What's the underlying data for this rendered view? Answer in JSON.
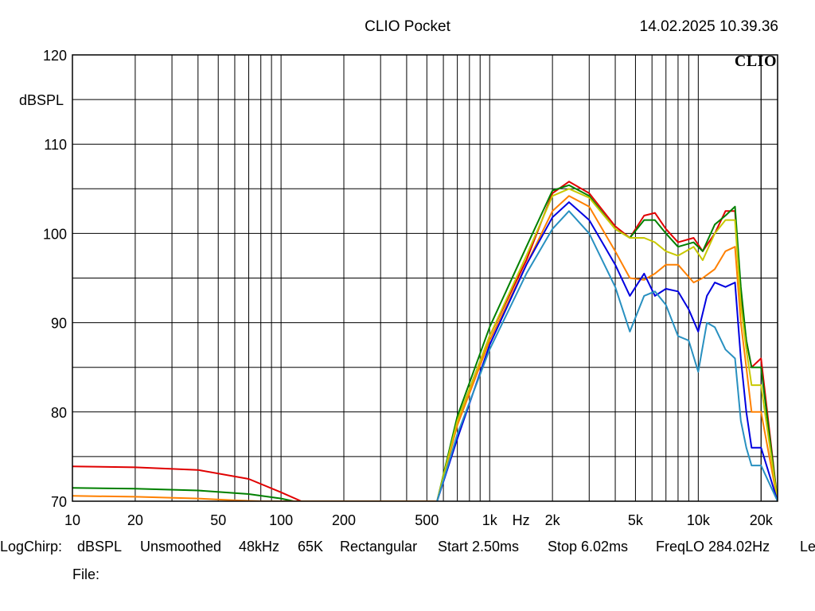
{
  "header": {
    "title": "CLIO Pocket",
    "datetime": "14.02.2025 10.39.36",
    "logo": "CLIO"
  },
  "footer": {
    "mode": "LogChirp:",
    "unit": "dBSPL",
    "smoothing": "Unsmoothed",
    "rate": "48kHz",
    "size": "65K",
    "window": "Rectangular",
    "start": "Start 2.50ms",
    "stop": "Stop 6.02ms",
    "freqlo": "FreqLO 284.02Hz",
    "truncated": "Le",
    "file": "File:"
  },
  "chart_data": {
    "type": "line",
    "title": "CLIO Pocket",
    "xlabel": "Hz",
    "ylabel": "dBSPL",
    "x_scale": "log",
    "xlim": [
      10,
      24000
    ],
    "ylim": [
      70,
      120
    ],
    "grid": true,
    "x_ticks": [
      {
        "value": 10,
        "label": "10"
      },
      {
        "value": 20,
        "label": "20"
      },
      {
        "value": 50,
        "label": "50"
      },
      {
        "value": 100,
        "label": "100"
      },
      {
        "value": 200,
        "label": "200"
      },
      {
        "value": 500,
        "label": "500"
      },
      {
        "value": 1000,
        "label": "1k"
      },
      {
        "value": 2000,
        "label": "2k"
      },
      {
        "value": 5000,
        "label": "5k"
      },
      {
        "value": 10000,
        "label": "10k"
      },
      {
        "value": 20000,
        "label": "20k"
      }
    ],
    "y_ticks": [
      70,
      80,
      90,
      100,
      110,
      120
    ],
    "series": [
      {
        "color": "#e00000",
        "x": [
          10,
          20,
          40,
          70,
          100,
          125,
          560,
          700,
          1000,
          1500,
          2000,
          2400,
          3000,
          4000,
          4700,
          5500,
          6200,
          7000,
          8000,
          9500,
          10500,
          12000,
          13500,
          15000,
          16000,
          17000,
          18000,
          20000,
          24000
        ],
        "y": [
          73.9,
          73.8,
          73.5,
          72.5,
          71.0,
          70.0,
          70.0,
          79.0,
          88.5,
          97.0,
          104.5,
          105.8,
          104.5,
          100.8,
          99.5,
          102.0,
          102.3,
          100.5,
          99.0,
          99.5,
          98.0,
          100.0,
          102.5,
          102.5,
          93.0,
          88.0,
          85.0,
          86.0,
          70.0
        ]
      },
      {
        "color": "#008000",
        "x": [
          10,
          20,
          40,
          70,
          100,
          115,
          560,
          700,
          1000,
          1500,
          2000,
          2400,
          3000,
          4000,
          4700,
          5500,
          6200,
          7000,
          8000,
          9500,
          10500,
          12000,
          13500,
          15000,
          16000,
          17000,
          18000,
          20000,
          24000
        ],
        "y": [
          71.5,
          71.4,
          71.2,
          70.8,
          70.3,
          70.0,
          70.0,
          79.5,
          89.5,
          98.5,
          104.8,
          105.4,
          104.2,
          100.5,
          99.5,
          101.5,
          101.5,
          100.0,
          98.5,
          99.0,
          98.0,
          101.0,
          102.0,
          103.0,
          94.0,
          88.0,
          85.0,
          85.0,
          70.0
        ]
      },
      {
        "color": "#ff8000",
        "x": [
          10,
          20,
          40,
          60,
          80,
          560,
          700,
          1000,
          1500,
          2000,
          2400,
          3000,
          4000,
          4700,
          5500,
          6200,
          7000,
          8000,
          9500,
          10500,
          12000,
          13500,
          15000,
          16000,
          17000,
          18000,
          20000,
          24000
        ],
        "y": [
          70.6,
          70.5,
          70.3,
          70.1,
          70.0,
          70.0,
          78.5,
          88.0,
          96.5,
          102.5,
          104.2,
          103.0,
          98.0,
          95.0,
          94.8,
          95.5,
          96.5,
          96.5,
          94.5,
          95.0,
          96.0,
          98.0,
          98.5,
          90.0,
          85.0,
          80.0,
          80.0,
          70.0
        ]
      },
      {
        "color": "#c8c800",
        "x": [
          560,
          700,
          1000,
          1500,
          2000,
          2400,
          3000,
          4000,
          4700,
          5500,
          6200,
          7000,
          8000,
          9500,
          10500,
          12000,
          13500,
          15000,
          16000,
          17000,
          18000,
          20000,
          24000
        ],
        "y": [
          70.0,
          79.0,
          88.5,
          97.5,
          104.2,
          105.0,
          104.0,
          100.5,
          99.5,
          99.5,
          99.0,
          98.0,
          97.5,
          98.5,
          97.0,
          100.0,
          101.5,
          101.5,
          92.0,
          87.0,
          83.0,
          83.0,
          70.0
        ]
      },
      {
        "color": "#0000e0",
        "x": [
          560,
          700,
          1000,
          1500,
          2000,
          2400,
          3000,
          4000,
          4700,
          5500,
          6200,
          7000,
          8000,
          9000,
          10000,
          11000,
          12000,
          13500,
          15000,
          16000,
          17000,
          18000,
          20000,
          24000
        ],
        "y": [
          70.0,
          77.0,
          87.5,
          96.5,
          101.8,
          103.5,
          101.5,
          96.5,
          93.0,
          95.5,
          93.0,
          93.8,
          93.5,
          91.5,
          89.0,
          93.0,
          94.5,
          94.0,
          94.5,
          86.0,
          80.0,
          76.0,
          76.0,
          70.0
        ]
      },
      {
        "color": "#2890c0",
        "x": [
          560,
          700,
          1000,
          1500,
          2000,
          2400,
          3000,
          4000,
          4700,
          5500,
          6200,
          7000,
          8000,
          9000,
          10000,
          11000,
          12000,
          13500,
          15000,
          16000,
          17000,
          18000,
          20000,
          24000
        ],
        "y": [
          70.0,
          77.5,
          87.0,
          95.5,
          100.5,
          102.5,
          100.0,
          94.0,
          89.0,
          93.0,
          93.5,
          92.0,
          88.5,
          88.0,
          84.5,
          90.0,
          89.5,
          87.0,
          86.0,
          79.0,
          76.0,
          74.0,
          74.0,
          70.0
        ]
      }
    ]
  }
}
